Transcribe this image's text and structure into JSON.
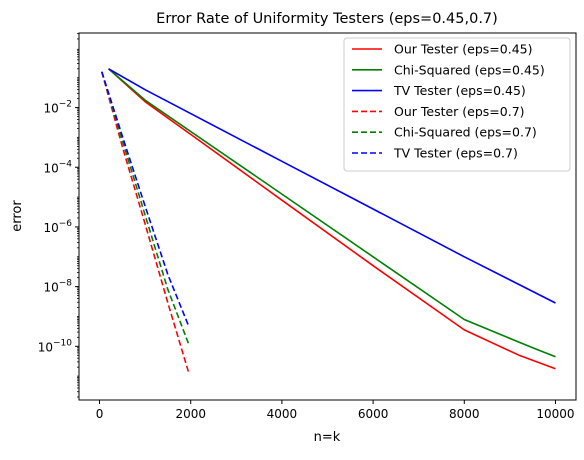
{
  "chart_data": {
    "type": "line",
    "title": "Error Rate of Uniformity Testers (eps=0.45,0.7)",
    "xlabel": "n=k",
    "ylabel": "error",
    "xlim": [
      -450,
      10450
    ],
    "ylim_log10": [
      -11.8,
      0.5
    ],
    "y_scale": "log",
    "grid": false,
    "legend_position": "top-right",
    "x_ticks": [
      {
        "value": 0,
        "label": "0"
      },
      {
        "value": 2000,
        "label": "2000"
      },
      {
        "value": 4000,
        "label": "4000"
      },
      {
        "value": 6000,
        "label": "6000"
      },
      {
        "value": 8000,
        "label": "8000"
      },
      {
        "value": 10000,
        "label": "10000"
      }
    ],
    "y_ticks": [
      {
        "exp": -2,
        "label_base": "10",
        "label_exp": "−2"
      },
      {
        "exp": -4,
        "label_base": "10",
        "label_exp": "−4"
      },
      {
        "exp": -6,
        "label_base": "10",
        "label_exp": "−6"
      },
      {
        "exp": -8,
        "label_base": "10",
        "label_exp": "−8"
      },
      {
        "exp": -10,
        "label_base": "10",
        "label_exp": "−10"
      }
    ],
    "series": [
      {
        "name": "Our Tester (eps=0.45)",
        "color": "#ff0000",
        "dash": "solid",
        "x": [
          200,
          1000,
          2000,
          4000,
          6000,
          8000,
          9200,
          10000
        ],
        "y": [
          0.2,
          0.0158,
          0.00126,
          7.9e-06,
          5.01e-08,
          3.55e-10,
          5.01e-11,
          1.78e-11
        ]
      },
      {
        "name": "Chi-Squared (eps=0.45)",
        "color": "#008000",
        "dash": "solid",
        "x": [
          200,
          1000,
          2000,
          4000,
          6000,
          8000,
          9500,
          10000
        ],
        "y": [
          0.2,
          0.0178,
          0.00158,
          1.26e-05,
          1e-07,
          7.9e-10,
          8.91e-11,
          4.47e-11
        ]
      },
      {
        "name": "TV Tester (eps=0.45)",
        "color": "#0000ff",
        "dash": "solid",
        "x": [
          200,
          1000,
          2000,
          4000,
          6000,
          8000,
          10000
        ],
        "y": [
          0.2,
          0.0398,
          0.00631,
          0.000158,
          3.98e-06,
          1e-07,
          2.82e-09
        ]
      },
      {
        "name": "Our Tester (eps=0.7)",
        "color": "#ff0000",
        "dash": "dashed",
        "x": [
          50,
          500,
          1000,
          1500,
          1950
        ],
        "y": [
          0.158,
          0.000501,
          1.26e-06,
          2.82e-09,
          1.41e-11
        ]
      },
      {
        "name": "Chi-Squared (eps=0.7)",
        "color": "#008000",
        "dash": "dashed",
        "x": [
          50,
          500,
          1000,
          1500,
          1950
        ],
        "y": [
          0.158,
          0.000794,
          2.51e-06,
          7.94e-09,
          1.26e-10
        ]
      },
      {
        "name": "TV Tester (eps=0.7)",
        "color": "#0000ff",
        "dash": "dashed",
        "x": [
          50,
          500,
          1000,
          1500,
          1950
        ],
        "y": [
          0.158,
          0.00112,
          5.01e-06,
          2.51e-08,
          5.01e-10
        ]
      }
    ]
  }
}
